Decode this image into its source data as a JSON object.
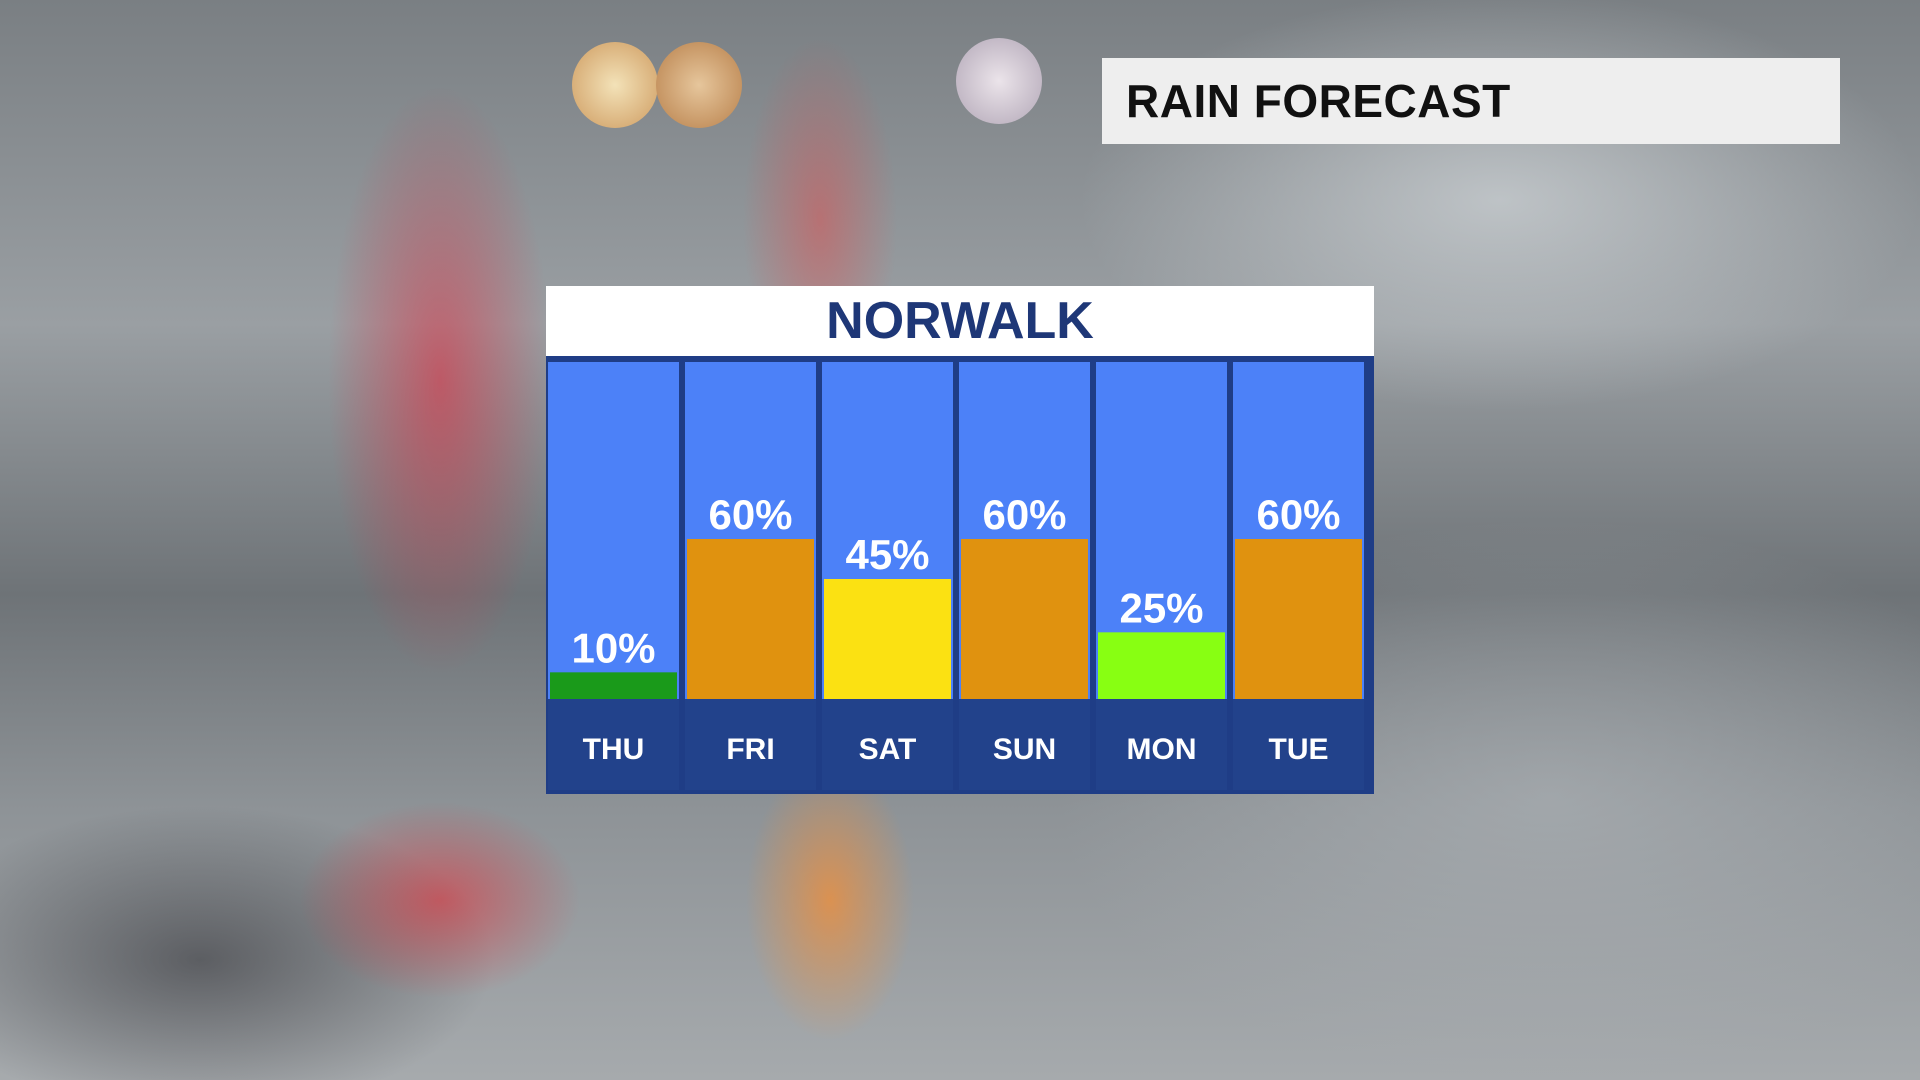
{
  "banner": {
    "title": "RAIN FORECAST"
  },
  "chart_data": {
    "type": "bar",
    "title": "NORWALK",
    "categories": [
      "THU",
      "FRI",
      "SAT",
      "SUN",
      "MON",
      "TUE"
    ],
    "values": [
      10,
      60,
      45,
      60,
      25,
      60
    ],
    "value_labels": [
      "10%",
      "60%",
      "45%",
      "60%",
      "25%",
      "60%"
    ],
    "bar_colors": [
      "#1a9a1a",
      "#e0920f",
      "#fbe112",
      "#e0920f",
      "#88ff12",
      "#e0920f"
    ],
    "column_background": "#4c81f8",
    "day_label_background": "#22428b",
    "ylim": [
      0,
      100
    ],
    "grid": false
  }
}
